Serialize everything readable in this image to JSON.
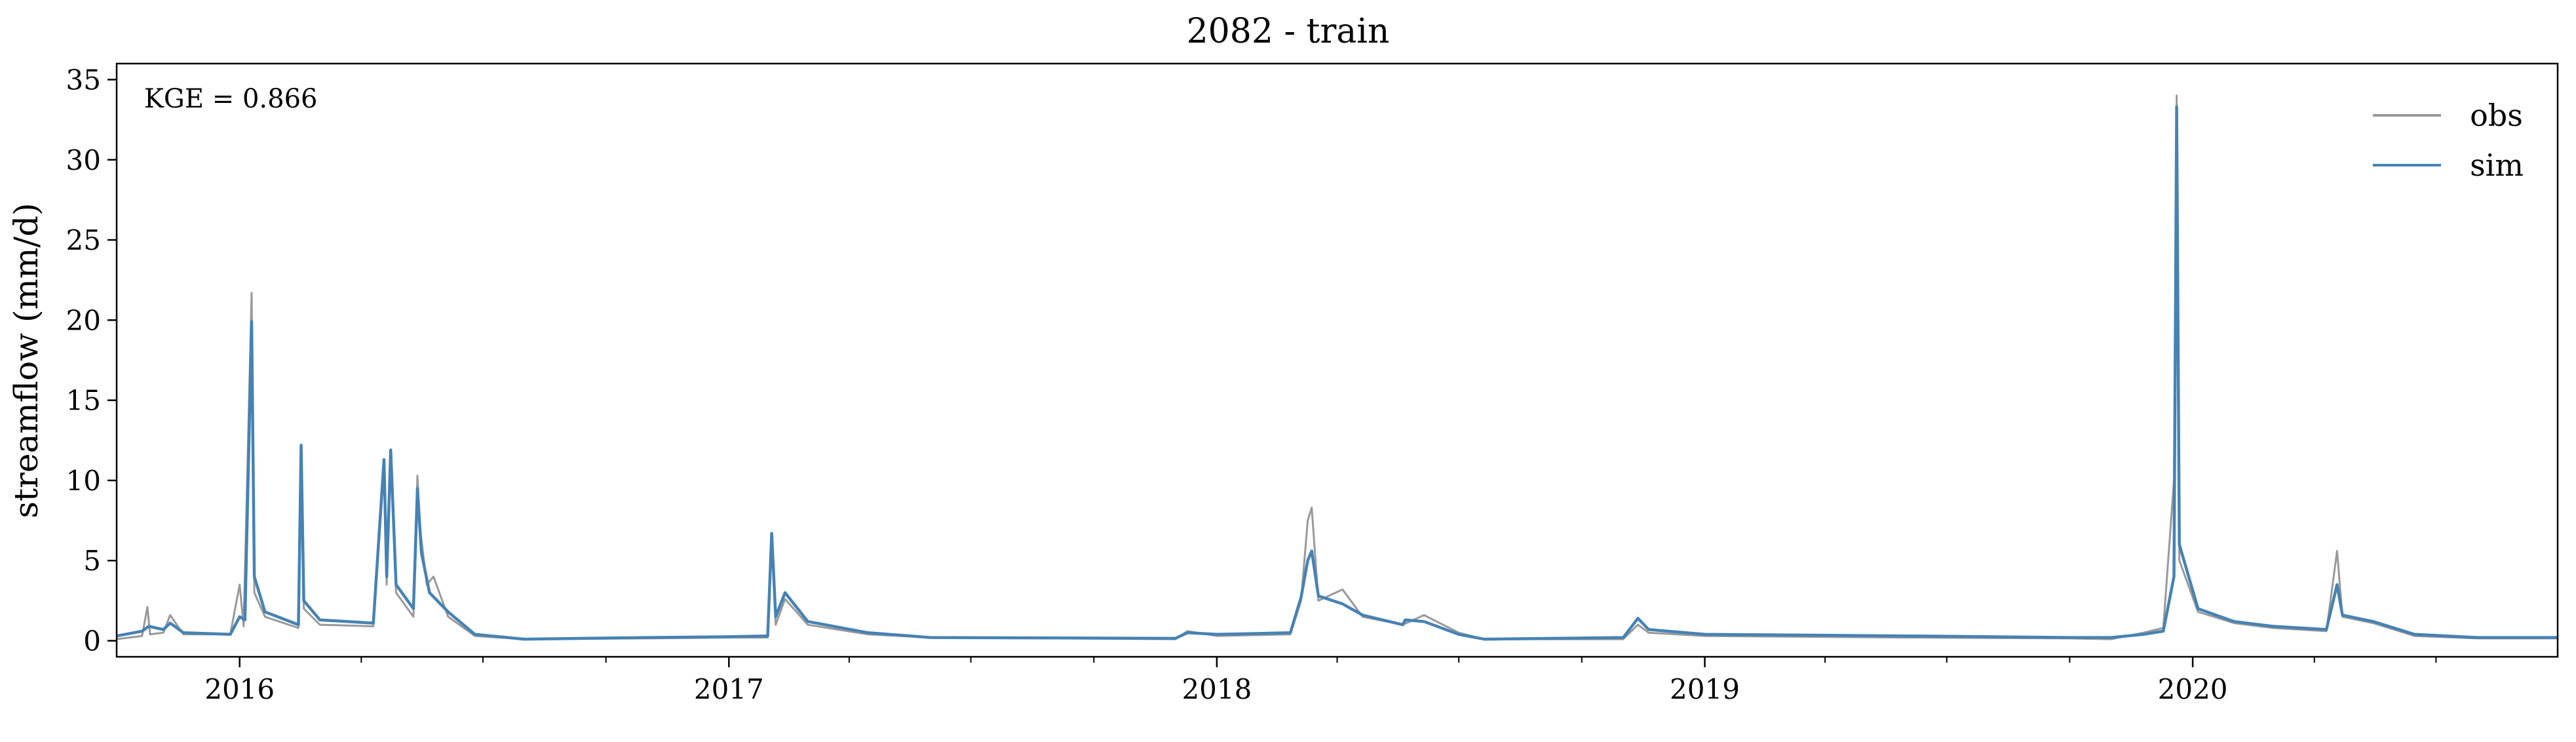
{
  "title": "2082 - train",
  "chart_data": {
    "type": "line",
    "title": "2082 - train",
    "xlabel": "",
    "ylabel": "streamflow (mm/d)",
    "x_range": [
      "2015-10-01",
      "2020-09-30"
    ],
    "ylim": [
      -1,
      36
    ],
    "yticks": [
      0,
      5,
      10,
      15,
      20,
      25,
      30,
      35
    ],
    "xtick_labels": [
      "2016",
      "2017",
      "2018",
      "2019",
      "2020"
    ],
    "annotation": "KGE = 0.866",
    "legend_position": "upper-right",
    "grid": false,
    "series": [
      {
        "name": "obs",
        "color": "#999999",
        "points": [
          [
            "2015-10-01",
            0.1
          ],
          [
            "2015-10-20",
            0.3
          ],
          [
            "2015-10-24",
            2.1
          ],
          [
            "2015-10-26",
            0.4
          ],
          [
            "2015-11-05",
            0.5
          ],
          [
            "2015-11-10",
            1.6
          ],
          [
            "2015-11-20",
            0.4
          ],
          [
            "2015-12-25",
            0.4
          ],
          [
            "2016-01-01",
            3.5
          ],
          [
            "2016-01-04",
            0.9
          ],
          [
            "2016-01-10",
            21.7
          ],
          [
            "2016-01-12",
            3.0
          ],
          [
            "2016-01-20",
            1.5
          ],
          [
            "2016-02-14",
            0.8
          ],
          [
            "2016-02-16",
            12.0
          ],
          [
            "2016-02-18",
            2.0
          ],
          [
            "2016-03-01",
            1.0
          ],
          [
            "2016-04-10",
            0.9
          ],
          [
            "2016-04-18",
            11.2
          ],
          [
            "2016-04-20",
            3.5
          ],
          [
            "2016-04-23",
            11.5
          ],
          [
            "2016-04-27",
            3.0
          ],
          [
            "2016-05-10",
            1.5
          ],
          [
            "2016-05-13",
            10.3
          ],
          [
            "2016-05-15",
            7.0
          ],
          [
            "2016-05-20",
            3.5
          ],
          [
            "2016-05-25",
            4.0
          ],
          [
            "2016-06-05",
            1.5
          ],
          [
            "2016-06-25",
            0.3
          ],
          [
            "2016-08-01",
            0.1
          ],
          [
            "2016-11-01",
            0.15
          ],
          [
            "2017-01-01",
            0.2
          ],
          [
            "2017-01-30",
            0.2
          ],
          [
            "2017-02-02",
            6.4
          ],
          [
            "2017-02-05",
            1.0
          ],
          [
            "2017-02-12",
            2.6
          ],
          [
            "2017-03-01",
            1.0
          ],
          [
            "2017-04-15",
            0.4
          ],
          [
            "2017-06-01",
            0.2
          ],
          [
            "2017-12-01",
            0.1
          ],
          [
            "2017-12-10",
            0.6
          ],
          [
            "2018-01-01",
            0.3
          ],
          [
            "2018-02-25",
            0.4
          ],
          [
            "2018-03-05",
            2.5
          ],
          [
            "2018-03-10",
            7.5
          ],
          [
            "2018-03-13",
            8.3
          ],
          [
            "2018-03-18",
            2.5
          ],
          [
            "2018-04-05",
            3.2
          ],
          [
            "2018-04-20",
            1.5
          ],
          [
            "2018-05-20",
            1.0
          ],
          [
            "2018-06-05",
            1.6
          ],
          [
            "2018-07-01",
            0.5
          ],
          [
            "2018-07-20",
            0.1
          ],
          [
            "2018-11-01",
            0.1
          ],
          [
            "2018-11-12",
            1.0
          ],
          [
            "2018-11-20",
            0.5
          ],
          [
            "2019-01-01",
            0.3
          ],
          [
            "2019-06-01",
            0.2
          ],
          [
            "2019-10-01",
            0.15
          ],
          [
            "2019-11-01",
            0.1
          ],
          [
            "2019-11-25",
            0.5
          ],
          [
            "2019-12-10",
            0.8
          ],
          [
            "2019-12-18",
            10.0
          ],
          [
            "2019-12-20",
            34.0
          ],
          [
            "2019-12-22",
            5.0
          ],
          [
            "2020-01-05",
            1.8
          ],
          [
            "2020-02-01",
            1.1
          ],
          [
            "2020-03-01",
            0.8
          ],
          [
            "2020-04-10",
            0.6
          ],
          [
            "2020-04-18",
            5.6
          ],
          [
            "2020-04-22",
            1.5
          ],
          [
            "2020-05-15",
            1.1
          ],
          [
            "2020-06-15",
            0.3
          ],
          [
            "2020-08-01",
            0.15
          ],
          [
            "2020-09-30",
            0.15
          ]
        ]
      },
      {
        "name": "sim",
        "color": "#4682b4",
        "points": [
          [
            "2015-10-01",
            0.3
          ],
          [
            "2015-10-20",
            0.6
          ],
          [
            "2015-10-25",
            0.9
          ],
          [
            "2015-11-05",
            0.7
          ],
          [
            "2015-11-10",
            1.1
          ],
          [
            "2015-11-20",
            0.5
          ],
          [
            "2015-12-25",
            0.4
          ],
          [
            "2016-01-01",
            1.5
          ],
          [
            "2016-01-05",
            1.3
          ],
          [
            "2016-01-10",
            19.9
          ],
          [
            "2016-01-12",
            4.0
          ],
          [
            "2016-01-20",
            1.8
          ],
          [
            "2016-02-14",
            1.0
          ],
          [
            "2016-02-16",
            12.2
          ],
          [
            "2016-02-18",
            2.5
          ],
          [
            "2016-03-01",
            1.3
          ],
          [
            "2016-04-10",
            1.1
          ],
          [
            "2016-04-18",
            11.3
          ],
          [
            "2016-04-20",
            4.0
          ],
          [
            "2016-04-23",
            11.9
          ],
          [
            "2016-04-27",
            3.5
          ],
          [
            "2016-05-10",
            2.0
          ],
          [
            "2016-05-13",
            9.5
          ],
          [
            "2016-05-16",
            5.5
          ],
          [
            "2016-05-22",
            3.0
          ],
          [
            "2016-06-05",
            1.8
          ],
          [
            "2016-06-25",
            0.4
          ],
          [
            "2016-08-01",
            0.1
          ],
          [
            "2016-11-01",
            0.2
          ],
          [
            "2017-01-01",
            0.25
          ],
          [
            "2017-01-30",
            0.3
          ],
          [
            "2017-02-02",
            6.7
          ],
          [
            "2017-02-05",
            1.5
          ],
          [
            "2017-02-12",
            3.0
          ],
          [
            "2017-03-01",
            1.2
          ],
          [
            "2017-04-15",
            0.5
          ],
          [
            "2017-06-01",
            0.2
          ],
          [
            "2017-12-01",
            0.15
          ],
          [
            "2017-12-10",
            0.5
          ],
          [
            "2018-01-01",
            0.4
          ],
          [
            "2018-02-25",
            0.5
          ],
          [
            "2018-03-05",
            2.7
          ],
          [
            "2018-03-10",
            5.0
          ],
          [
            "2018-03-13",
            5.6
          ],
          [
            "2018-03-18",
            2.8
          ],
          [
            "2018-04-05",
            2.3
          ],
          [
            "2018-04-20",
            1.6
          ],
          [
            "2018-05-20",
            1.0
          ],
          [
            "2018-05-22",
            1.3
          ],
          [
            "2018-06-05",
            1.2
          ],
          [
            "2018-07-01",
            0.4
          ],
          [
            "2018-07-20",
            0.1
          ],
          [
            "2018-11-01",
            0.2
          ],
          [
            "2018-11-12",
            1.4
          ],
          [
            "2018-11-20",
            0.7
          ],
          [
            "2019-01-01",
            0.4
          ],
          [
            "2019-06-01",
            0.3
          ],
          [
            "2019-10-01",
            0.2
          ],
          [
            "2019-11-01",
            0.2
          ],
          [
            "2019-11-25",
            0.4
          ],
          [
            "2019-12-10",
            0.6
          ],
          [
            "2019-12-18",
            4.0
          ],
          [
            "2019-12-20",
            33.3
          ],
          [
            "2019-12-22",
            6.0
          ],
          [
            "2020-01-05",
            2.0
          ],
          [
            "2020-02-01",
            1.2
          ],
          [
            "2020-03-01",
            0.9
          ],
          [
            "2020-04-10",
            0.7
          ],
          [
            "2020-04-18",
            3.5
          ],
          [
            "2020-04-22",
            1.6
          ],
          [
            "2020-05-15",
            1.2
          ],
          [
            "2020-06-15",
            0.4
          ],
          [
            "2020-08-01",
            0.2
          ],
          [
            "2020-09-30",
            0.2
          ]
        ]
      }
    ]
  }
}
